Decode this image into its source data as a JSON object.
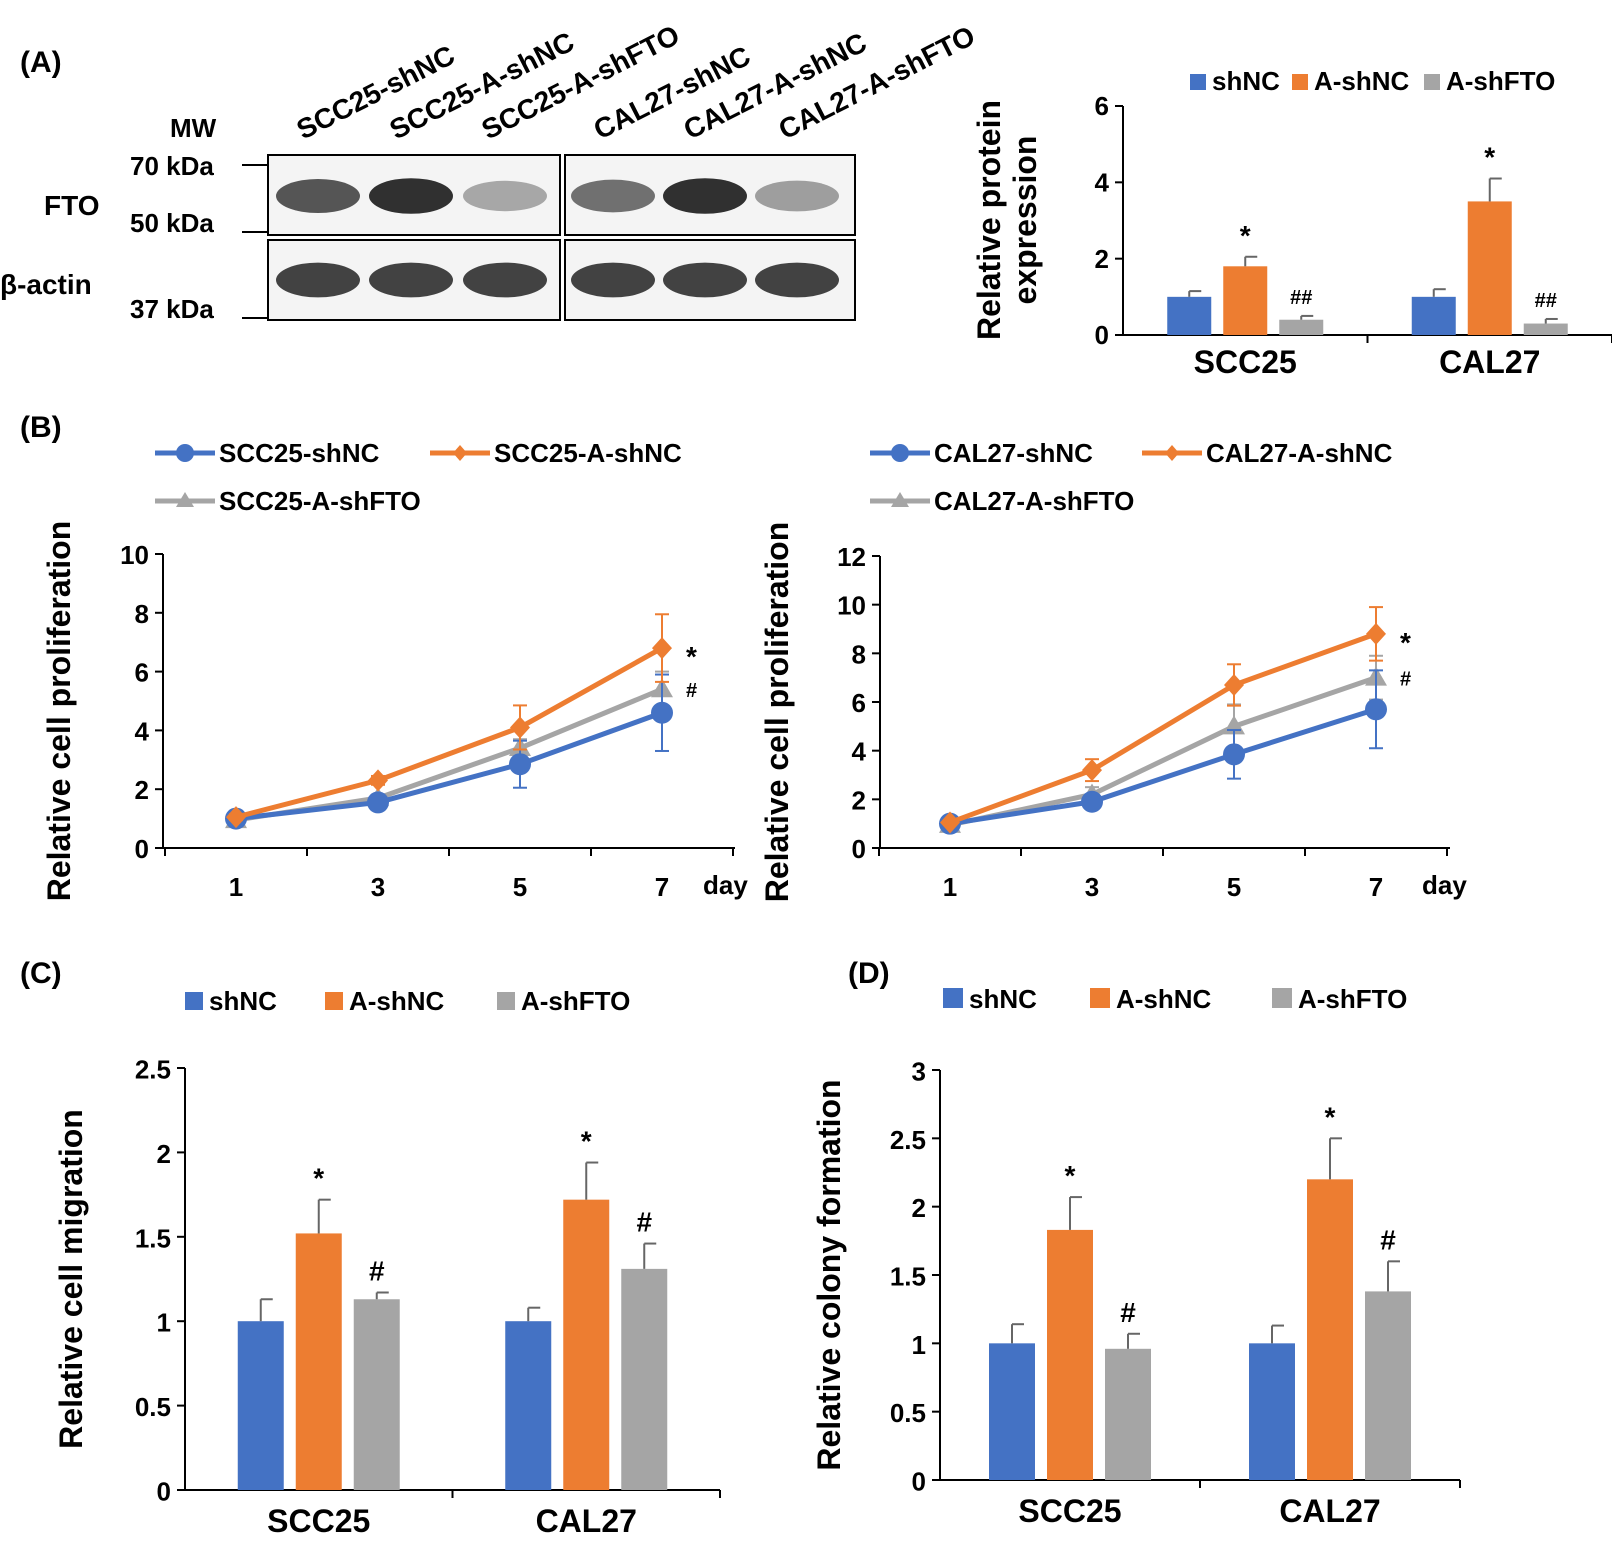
{
  "colors": {
    "shNC": "#4472C4",
    "A_shNC": "#ED7D31",
    "A_shFTO": "#A5A5A5"
  },
  "panel_labels": [
    "(A)",
    "(B)",
    "(C)",
    "(D)"
  ],
  "blot": {
    "mw_label": "MW",
    "lanes": [
      "SCC25-shNC",
      "SCC25-A-shNC",
      "SCC25-A-shFTO",
      "CAL27-shNC",
      "CAL27-A-shNC",
      "CAL27-A-shFTO"
    ],
    "rows": [
      {
        "name": "FTO",
        "bands": [
          0.75,
          0.95,
          0.3,
          0.6,
          0.95,
          0.35
        ]
      },
      {
        "name": "β-actin",
        "bands": [
          0.85,
          0.85,
          0.85,
          0.85,
          0.85,
          0.85
        ]
      }
    ],
    "markers": [
      "70 kDa",
      "50 kDa",
      "37 kDa"
    ]
  },
  "chart_data": [
    {
      "type": "bar",
      "panel": "A",
      "categories": [
        "SCC25",
        "CAL27"
      ],
      "series": [
        {
          "name": "shNC",
          "values": [
            1.0,
            1.0
          ],
          "errors": [
            0.15,
            0.2
          ]
        },
        {
          "name": "A-shNC",
          "values": [
            1.8,
            3.5
          ],
          "errors": [
            0.25,
            0.6
          ]
        },
        {
          "name": "A-shFTO",
          "values": [
            0.4,
            0.3
          ],
          "errors": [
            0.1,
            0.12
          ]
        }
      ],
      "annotations": [
        [
          "",
          "*",
          "##"
        ],
        [
          "",
          "*",
          "##"
        ]
      ],
      "ylabel": "Relative protein expression",
      "ylim": [
        0,
        6
      ],
      "yticks": [
        0,
        2,
        4,
        6
      ],
      "legend": "top"
    },
    {
      "type": "line",
      "panel": "B-left",
      "x": [
        1,
        3,
        5,
        7
      ],
      "xlabel": "day",
      "series": [
        {
          "name": "SCC25-shNC",
          "values": [
            1.0,
            1.55,
            2.85,
            4.6
          ],
          "errors": [
            0.15,
            0.15,
            0.8,
            1.3
          ]
        },
        {
          "name": "SCC25-A-shNC",
          "values": [
            1.05,
            2.3,
            4.1,
            6.8
          ],
          "errors": [
            0.1,
            0.15,
            0.75,
            1.15
          ]
        },
        {
          "name": "SCC25-A-shFTO",
          "values": [
            0.95,
            1.7,
            3.4,
            5.4
          ],
          "errors": [
            0.1,
            0.1,
            0.3,
            0.6
          ]
        }
      ],
      "annotations": [
        "",
        "*",
        "#"
      ],
      "ylabel": "Relative cell proliferation",
      "ylim": [
        0,
        10
      ],
      "yticks": [
        0,
        2,
        4,
        6,
        8,
        10
      ],
      "legend": "top"
    },
    {
      "type": "line",
      "panel": "B-right",
      "x": [
        1,
        3,
        5,
        7
      ],
      "xlabel": "day",
      "series": [
        {
          "name": "CAL27-shNC",
          "values": [
            1.0,
            1.9,
            3.85,
            5.7
          ],
          "errors": [
            0.15,
            0.3,
            1.0,
            1.6
          ]
        },
        {
          "name": "CAL27-A-shNC",
          "values": [
            1.05,
            3.2,
            6.7,
            8.8
          ],
          "errors": [
            0.1,
            0.45,
            0.85,
            1.1
          ]
        },
        {
          "name": "CAL27-A-shFTO",
          "values": [
            0.95,
            2.2,
            5.0,
            7.0
          ],
          "errors": [
            0.1,
            0.3,
            0.9,
            0.9
          ]
        }
      ],
      "annotations": [
        "",
        "*",
        "#"
      ],
      "ylabel": "Relative cell proliferation",
      "ylim": [
        0,
        12
      ],
      "yticks": [
        0,
        2,
        4,
        6,
        8,
        10,
        12
      ],
      "legend": "top"
    },
    {
      "type": "bar",
      "panel": "C",
      "categories": [
        "SCC25",
        "CAL27"
      ],
      "series": [
        {
          "name": "shNC",
          "values": [
            1.0,
            1.0
          ],
          "errors": [
            0.13,
            0.08
          ]
        },
        {
          "name": "A-shNC",
          "values": [
            1.52,
            1.72
          ],
          "errors": [
            0.2,
            0.22
          ]
        },
        {
          "name": "A-shFTO",
          "values": [
            1.13,
            1.31
          ],
          "errors": [
            0.04,
            0.15
          ]
        }
      ],
      "annotations": [
        [
          "",
          "*",
          "#"
        ],
        [
          "",
          "*",
          "#"
        ]
      ],
      "ylabel": "Relative cell migration",
      "ylim": [
        0,
        2.5
      ],
      "yticks": [
        0,
        0.5,
        1,
        1.5,
        2,
        2.5
      ],
      "legend": "top"
    },
    {
      "type": "bar",
      "panel": "D",
      "categories": [
        "SCC25",
        "CAL27"
      ],
      "series": [
        {
          "name": "shNC",
          "values": [
            1.0,
            1.0
          ],
          "errors": [
            0.14,
            0.13
          ]
        },
        {
          "name": "A-shNC",
          "values": [
            1.83,
            2.2
          ],
          "errors": [
            0.24,
            0.3
          ]
        },
        {
          "name": "A-shFTO",
          "values": [
            0.96,
            1.38
          ],
          "errors": [
            0.11,
            0.22
          ]
        }
      ],
      "annotations": [
        [
          "",
          "*",
          "#"
        ],
        [
          "",
          "*",
          "#"
        ]
      ],
      "ylabel": "Relative colony formation",
      "ylim": [
        0,
        3
      ],
      "yticks": [
        0,
        0.5,
        1,
        1.5,
        2,
        2.5,
        3
      ],
      "legend": "top"
    }
  ]
}
